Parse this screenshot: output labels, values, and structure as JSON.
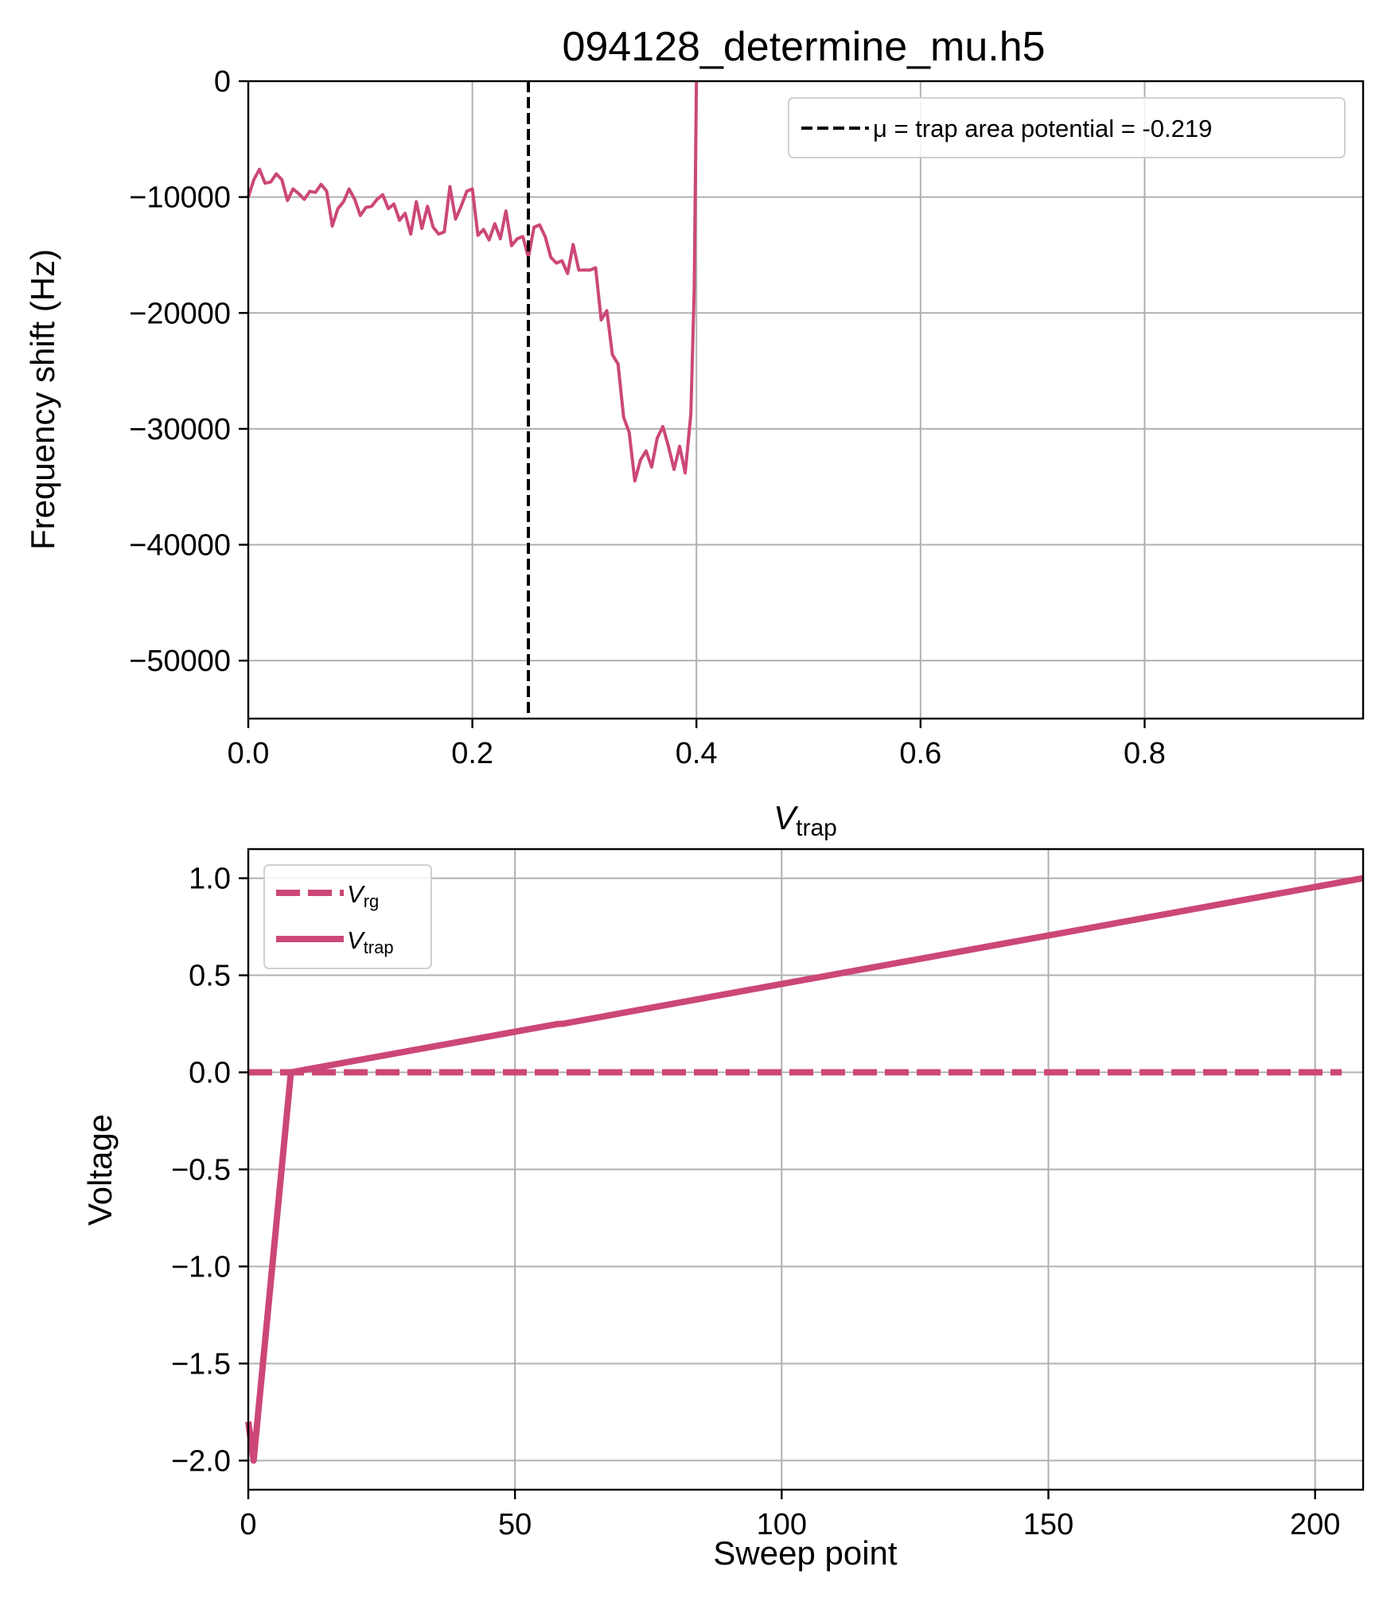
{
  "colors": {
    "series": "#cc4778",
    "marker_line": "#000000",
    "grid": "#b0b0b0"
  },
  "chart_data": [
    {
      "type": "line",
      "title": "094128_determine_mu.h5",
      "xlabel": "V",
      "xlabel_sub": "trap",
      "ylabel": "Frequency shift (Hz)",
      "xlim": [
        0.0,
        0.995
      ],
      "ylim": [
        -55000,
        0
      ],
      "xticks": [
        0.0,
        0.2,
        0.4,
        0.6,
        0.8
      ],
      "xtick_labels": [
        "0.0",
        "0.2",
        "0.4",
        "0.6",
        "0.8"
      ],
      "yticks": [
        0,
        -10000,
        -20000,
        -30000,
        -40000,
        -50000
      ],
      "ytick_labels": [
        "0",
        "−10000",
        "−20000",
        "−30000",
        "−40000",
        "−50000"
      ],
      "grid": true,
      "legend_position": "upper-right",
      "vline": {
        "x": 0.25,
        "legend": "μ = trap area potential = -0.219",
        "style": "dashed"
      },
      "series": [
        {
          "x": [
            0.0,
            0.005,
            0.01,
            0.015,
            0.02,
            0.025,
            0.03,
            0.035,
            0.04,
            0.045,
            0.05,
            0.055,
            0.06,
            0.065,
            0.07,
            0.075,
            0.08,
            0.085,
            0.09,
            0.095,
            0.1,
            0.105,
            0.11,
            0.115,
            0.12,
            0.125,
            0.13,
            0.135,
            0.14,
            0.145,
            0.15,
            0.155,
            0.16,
            0.165,
            0.17,
            0.175,
            0.18,
            0.185,
            0.19,
            0.195,
            0.2,
            0.205,
            0.21,
            0.215,
            0.22,
            0.225,
            0.23,
            0.235,
            0.24,
            0.245,
            0.25,
            0.255,
            0.26,
            0.265,
            0.27,
            0.275,
            0.28,
            0.285,
            0.29,
            0.295,
            0.3,
            0.305,
            0.31,
            0.315,
            0.32,
            0.325,
            0.33,
            0.335,
            0.34,
            0.345,
            0.35,
            0.355,
            0.36,
            0.365,
            0.37,
            0.375,
            0.38,
            0.385,
            0.39,
            0.395,
            0.398,
            0.4
          ],
          "y": [
            -10000,
            -8500,
            -7600,
            -8800,
            -8700,
            -8000,
            -8500,
            -10300,
            -9300,
            -9700,
            -10200,
            -9500,
            -9600,
            -8900,
            -9500,
            -12500,
            -11000,
            -10400,
            -9300,
            -10200,
            -11600,
            -10900,
            -10800,
            -10200,
            -9800,
            -11000,
            -10600,
            -12000,
            -11400,
            -13200,
            -10400,
            -12700,
            -10800,
            -12600,
            -13200,
            -13000,
            -9100,
            -11900,
            -10800,
            -9500,
            -9300,
            -13300,
            -12800,
            -13700,
            -12300,
            -13600,
            -11200,
            -14200,
            -13600,
            -13400,
            -15200,
            -12600,
            -12400,
            -13400,
            -15200,
            -15700,
            -15500,
            -16600,
            -14100,
            -16300,
            -16300,
            -16300,
            -16100,
            -20600,
            -19800,
            -23600,
            -24400,
            -29000,
            -30300,
            -34500,
            -32700,
            -31900,
            -33300,
            -30800,
            -29800,
            -31500,
            -33500,
            -31500,
            -33800,
            -28700,
            -18000,
            0
          ]
        }
      ]
    },
    {
      "type": "line",
      "title": "",
      "xlabel": "Sweep point",
      "ylabel": "Voltage",
      "xlim": [
        0,
        209
      ],
      "ylim": [
        -2.15,
        1.15
      ],
      "xticks": [
        0,
        50,
        100,
        150,
        200
      ],
      "xtick_labels": [
        "0",
        "50",
        "100",
        "150",
        "200"
      ],
      "yticks": [
        1.0,
        0.5,
        0.0,
        -0.5,
        -1.0,
        -1.5,
        -2.0
      ],
      "ytick_labels": [
        "1.0",
        "0.5",
        "0.0",
        "−0.5",
        "−1.0",
        "−1.5",
        "−2.0"
      ],
      "grid": true,
      "legend_position": "upper-left",
      "series": [
        {
          "name": "V",
          "name_sub": "rg",
          "style": "dashed",
          "x": [
            0,
            1,
            8,
            205
          ],
          "y": [
            0.0,
            0.0,
            0.0,
            0.0
          ]
        },
        {
          "name": "V",
          "name_sub": "trap",
          "style": "solid",
          "x": [
            0,
            1,
            8,
            58,
            59,
            209
          ],
          "y": [
            -1.8,
            -2.0,
            0.0,
            0.249,
            0.25,
            1.0
          ]
        }
      ]
    }
  ]
}
